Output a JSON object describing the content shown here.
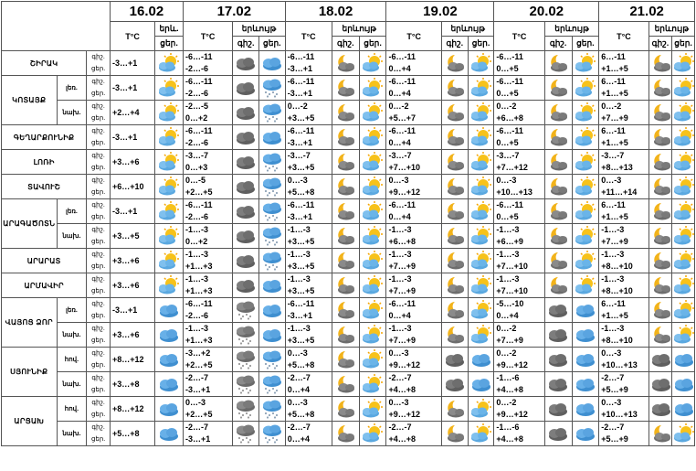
{
  "dates": [
    "16.02",
    "17.02",
    "18.02",
    "19.02",
    "20.02",
    "21.02"
  ],
  "header": {
    "temp_label": "T°C",
    "weather_label_short": "երև.",
    "weather_label": "երևույթ",
    "day_label": "ցեր.",
    "night_label": "գիշ."
  },
  "rows": [
    {
      "region": "ՇԻՐԱԿ",
      "sub": "",
      "rs": 1,
      "cells": [
        {
          "n": "",
          "d": "-3…+1",
          "ni": "",
          "di": "sun-cloud"
        },
        {
          "n": "-6…-11",
          "d": "-2…-6",
          "ni": "cloud",
          "di": "cloud-blue"
        },
        {
          "n": "-6…-11",
          "d": "-3…+1",
          "ni": "moon-cloud",
          "di": "sun-cloud"
        },
        {
          "n": "-6…-11",
          "d": "0…+4",
          "ni": "moon-cloud",
          "di": "sun-cloud"
        },
        {
          "n": "-6…-11",
          "d": "0…+5",
          "ni": "moon-cloud",
          "di": "sun-cloud"
        },
        {
          "n": "6…-11",
          "d": "+1…+5",
          "ni": "moon-cloud",
          "di": "sun-cloud"
        }
      ]
    },
    {
      "region": "ԿՈՏԱՅՔ",
      "sub": "լեռ.",
      "rs": 2,
      "cells": [
        {
          "n": "",
          "d": "-3…+1",
          "ni": "",
          "di": "sun-cloud"
        },
        {
          "n": "-6…-11",
          "d": "-2…-6",
          "ni": "cloud",
          "di": "cloud-snow"
        },
        {
          "n": "-6…-11",
          "d": "-3…+1",
          "ni": "moon-cloud",
          "di": "sun-cloud"
        },
        {
          "n": "-6…-11",
          "d": "0…+4",
          "ni": "moon-cloud",
          "di": "sun-cloud"
        },
        {
          "n": "-6…-11",
          "d": "0…+5",
          "ni": "moon-cloud",
          "di": "sun-cloud"
        },
        {
          "n": "6…-11",
          "d": "+1…+5",
          "ni": "moon-cloud",
          "di": "sun-cloud"
        }
      ]
    },
    {
      "region": "",
      "sub": "նախ.",
      "rs": 0,
      "cells": [
        {
          "n": "",
          "d": "+2…+4",
          "ni": "",
          "di": "sun-cloud"
        },
        {
          "n": "-2…-5",
          "d": "0…+2",
          "ni": "cloud",
          "di": "cloud-snow"
        },
        {
          "n": "0…-2",
          "d": "+3…+5",
          "ni": "moon-cloud",
          "di": "sun-cloud"
        },
        {
          "n": "0…-2",
          "d": "+5…+7",
          "ni": "moon-cloud",
          "di": "sun-cloud"
        },
        {
          "n": "0…-2",
          "d": "+6…+8",
          "ni": "moon-cloud",
          "di": "sun-cloud"
        },
        {
          "n": "0…-2",
          "d": "+7…+9",
          "ni": "moon-cloud",
          "di": "sun-cloud"
        }
      ]
    },
    {
      "region": "ԳԵՂԱՐՔՈՒՆԻՔ",
      "sub": "",
      "rs": 1,
      "cells": [
        {
          "n": "",
          "d": "-3…+1",
          "ni": "",
          "di": "sun-cloud"
        },
        {
          "n": "-6…-11",
          "d": "-2…-6",
          "ni": "cloud",
          "di": "cloud-blue"
        },
        {
          "n": "-6…-11",
          "d": "-3…+1",
          "ni": "moon-cloud",
          "di": "sun-cloud"
        },
        {
          "n": "-6…-11",
          "d": "0…+4",
          "ni": "moon-cloud",
          "di": "sun-cloud"
        },
        {
          "n": "-6…-11",
          "d": "0…+5",
          "ni": "moon-cloud",
          "di": "sun-cloud"
        },
        {
          "n": "6…-11",
          "d": "+1…+5",
          "ni": "moon-cloud",
          "di": "sun-cloud"
        }
      ]
    },
    {
      "region": "ԼՈՌԻ",
      "sub": "",
      "rs": 1,
      "cells": [
        {
          "n": "",
          "d": "+3…+6",
          "ni": "",
          "di": "sun-cloud"
        },
        {
          "n": "-3…-7",
          "d": "0…+3",
          "ni": "cloud",
          "di": "cloud-snow"
        },
        {
          "n": "-3…-7",
          "d": "+3…+5",
          "ni": "moon-cloud",
          "di": "sun-cloud"
        },
        {
          "n": "-3…-7",
          "d": "+7…+10",
          "ni": "moon-cloud",
          "di": "sun-cloud"
        },
        {
          "n": "-3…-7",
          "d": "+7…+12",
          "ni": "moon-cloud",
          "di": "sun-cloud"
        },
        {
          "n": "-3…-7",
          "d": "+8…+13",
          "ni": "moon-cloud",
          "di": "sun-cloud"
        }
      ]
    },
    {
      "region": "ՏԱՎՈՒՇ",
      "sub": "",
      "rs": 1,
      "cells": [
        {
          "n": "",
          "d": "+6…+10",
          "ni": "",
          "di": "sun-cloud"
        },
        {
          "n": "0…-5",
          "d": "+2…+5",
          "ni": "cloud",
          "di": "cloud-snow"
        },
        {
          "n": "0…-3",
          "d": "+5…+8",
          "ni": "moon-cloud",
          "di": "sun-cloud"
        },
        {
          "n": "0…-3",
          "d": "+9…+12",
          "ni": "moon-cloud",
          "di": "sun-cloud"
        },
        {
          "n": "0…-3",
          "d": "+10…+13",
          "ni": "moon-cloud",
          "di": "sun-cloud"
        },
        {
          "n": "0…-3",
          "d": "+11…+14",
          "ni": "moon-cloud",
          "di": "sun-cloud"
        }
      ]
    },
    {
      "region": "ԱՐԱԳԱԾՈՏՆ",
      "sub": "լեռ.",
      "rs": 2,
      "cells": [
        {
          "n": "",
          "d": "-3…+1",
          "ni": "",
          "di": "sun-cloud"
        },
        {
          "n": "-6…-11",
          "d": "-2…-6",
          "ni": "cloud",
          "di": "cloud-snow"
        },
        {
          "n": "-6…-11",
          "d": "-3…+1",
          "ni": "moon-cloud",
          "di": "sun-cloud"
        },
        {
          "n": "-6…-11",
          "d": "0…+4",
          "ni": "moon-cloud",
          "di": "sun-cloud"
        },
        {
          "n": "-6…-11",
          "d": "0…+5",
          "ni": "moon-cloud",
          "di": "sun-cloud"
        },
        {
          "n": "6…-11",
          "d": "+1…+5",
          "ni": "moon-cloud",
          "di": "sun-cloud"
        }
      ]
    },
    {
      "region": "",
      "sub": "նախ.",
      "rs": 0,
      "cells": [
        {
          "n": "",
          "d": "+3…+5",
          "ni": "",
          "di": "sun-cloud"
        },
        {
          "n": "-1…-3",
          "d": "0…+2",
          "ni": "cloud",
          "di": "cloud-snow"
        },
        {
          "n": "-1…-3",
          "d": "+3…+5",
          "ni": "moon-cloud",
          "di": "sun-cloud"
        },
        {
          "n": "-1…-3",
          "d": "+6…+8",
          "ni": "moon-cloud",
          "di": "sun-cloud"
        },
        {
          "n": "-1…-3",
          "d": "+6…+9",
          "ni": "moon-cloud",
          "di": "sun-cloud"
        },
        {
          "n": "-1…-3",
          "d": "+7…+9",
          "ni": "moon-cloud",
          "di": "sun-cloud"
        }
      ]
    },
    {
      "region": "ԱՐԱՐԱՏ",
      "sub": "",
      "rs": 1,
      "cells": [
        {
          "n": "",
          "d": "+3…+6",
          "ni": "",
          "di": "sun-cloud"
        },
        {
          "n": "-1…-3",
          "d": "+1…+3",
          "ni": "cloud",
          "di": "cloud-snow"
        },
        {
          "n": "-1…-3",
          "d": "+3…+5",
          "ni": "moon-cloud",
          "di": "sun-cloud"
        },
        {
          "n": "-1…-3",
          "d": "+7…+9",
          "ni": "moon-cloud",
          "di": "sun-cloud"
        },
        {
          "n": "-1…-3",
          "d": "+7…+10",
          "ni": "moon-cloud",
          "di": "sun-cloud"
        },
        {
          "n": "-1…-3",
          "d": "+8…+10",
          "ni": "moon-cloud",
          "di": "sun-cloud"
        }
      ]
    },
    {
      "region": "ԱՐՄԱՎԻՐ",
      "sub": "",
      "rs": 1,
      "cells": [
        {
          "n": "",
          "d": "+3…+6",
          "ni": "",
          "di": "sun-cloud"
        },
        {
          "n": "-1…-3",
          "d": "+1…+3",
          "ni": "cloud",
          "di": "cloud-blue"
        },
        {
          "n": "-1…-3",
          "d": "+3…+5",
          "ni": "moon-cloud",
          "di": "sun-cloud"
        },
        {
          "n": "-1…-3",
          "d": "+7…+9",
          "ni": "moon-cloud",
          "di": "sun-cloud"
        },
        {
          "n": "-1…-3",
          "d": "+7…+10",
          "ni": "moon-cloud",
          "di": "sun-cloud"
        },
        {
          "n": "-1…-3",
          "d": "+8…+10",
          "ni": "moon-cloud",
          "di": "sun-cloud"
        }
      ]
    },
    {
      "region": "ՎԱՅՈՑ ՁՈՐ",
      "sub": "լեռ.",
      "rs": 2,
      "cells": [
        {
          "n": "",
          "d": "-3…+1",
          "ni": "",
          "di": "cloud-blue"
        },
        {
          "n": "-6…-11",
          "d": "-2…-6",
          "ni": "cloud-snow-gray",
          "di": "cloud-blue"
        },
        {
          "n": "-6…-11",
          "d": "-3…+1",
          "ni": "moon-cloud",
          "di": "sun-cloud"
        },
        {
          "n": "-6…-11",
          "d": "0…+4",
          "ni": "moon-cloud",
          "di": "sun-cloud"
        },
        {
          "n": "-5…-10",
          "d": "0…+4",
          "ni": "cloud",
          "di": "cloud-blue"
        },
        {
          "n": "6…-11",
          "d": "+1…+5",
          "ni": "moon-cloud",
          "di": "sun-cloud"
        }
      ]
    },
    {
      "region": "",
      "sub": "նախ.",
      "rs": 0,
      "cells": [
        {
          "n": "",
          "d": "+3…+6",
          "ni": "",
          "di": "cloud-blue"
        },
        {
          "n": "-1…-3",
          "d": "+1…+3",
          "ni": "cloud-snow-gray",
          "di": "cloud-blue"
        },
        {
          "n": "-1…-3",
          "d": "+3…+5",
          "ni": "moon-cloud",
          "di": "sun-cloud"
        },
        {
          "n": "-1…-3",
          "d": "+7…+9",
          "ni": "moon-cloud",
          "di": "sun-cloud"
        },
        {
          "n": "0…-2",
          "d": "+7…+9",
          "ni": "cloud",
          "di": "cloud-blue"
        },
        {
          "n": "-1…-3",
          "d": "+8…+10",
          "ni": "moon-cloud",
          "di": "sun-cloud"
        }
      ]
    },
    {
      "region": "ՍՅՈՒՆԻՔ",
      "sub": "հով.",
      "rs": 2,
      "cells": [
        {
          "n": "",
          "d": "+8…+12",
          "ni": "",
          "di": "cloud-blue"
        },
        {
          "n": "-3…+2",
          "d": "+2…+5",
          "ni": "cloud-snow-gray",
          "di": "cloud-snow"
        },
        {
          "n": "0…-3",
          "d": "+5…+8",
          "ni": "moon-cloud",
          "di": "sun-cloud"
        },
        {
          "n": "0…-3",
          "d": "+9…+12",
          "ni": "cloud",
          "di": "cloud-blue"
        },
        {
          "n": "0…-2",
          "d": "+9…+12",
          "ni": "cloud",
          "di": "cloud-blue"
        },
        {
          "n": "0…-3",
          "d": "+10…+13",
          "ni": "cloud",
          "di": "cloud-blue"
        }
      ]
    },
    {
      "region": "",
      "sub": "նախ.",
      "rs": 0,
      "cells": [
        {
          "n": "",
          "d": "+3…+8",
          "ni": "",
          "di": "cloud-blue"
        },
        {
          "n": "-2…-7",
          "d": "-3…+1",
          "ni": "cloud-snow-gray",
          "di": "cloud-snow"
        },
        {
          "n": "-2…-7",
          "d": "0…+4",
          "ni": "moon-cloud",
          "di": "sun-cloud"
        },
        {
          "n": "-2…-7",
          "d": "+4…+8",
          "ni": "cloud",
          "di": "cloud-blue"
        },
        {
          "n": "-1…-6",
          "d": "+4…+8",
          "ni": "cloud",
          "di": "cloud-blue"
        },
        {
          "n": "-2…-7",
          "d": "+5…+9",
          "ni": "cloud",
          "di": "cloud-blue"
        }
      ]
    },
    {
      "region": "ԱՐՑԱԽ",
      "sub": "հով.",
      "rs": 2,
      "cells": [
        {
          "n": "",
          "d": "+8…+12",
          "ni": "",
          "di": "cloud-blue"
        },
        {
          "n": "0…-3",
          "d": "+2…+5",
          "ni": "cloud-snow-gray",
          "di": "cloud-snow"
        },
        {
          "n": "0…-3",
          "d": "+5…+8",
          "ni": "moon-cloud",
          "di": "sun-cloud"
        },
        {
          "n": "0…-3",
          "d": "+9…+12",
          "ni": "moon-cloud",
          "di": "sun-cloud"
        },
        {
          "n": "0…-2",
          "d": "+9…+12",
          "ni": "cloud",
          "di": "cloud-blue"
        },
        {
          "n": "0…-3",
          "d": "+10…+13",
          "ni": "cloud",
          "di": "cloud-blue"
        }
      ]
    },
    {
      "region": "",
      "sub": "նախ.",
      "rs": 0,
      "cells": [
        {
          "n": "",
          "d": "+5…+8",
          "ni": "",
          "di": "cloud-blue"
        },
        {
          "n": "-2…-7",
          "d": "-3…+1",
          "ni": "cloud-snow-gray",
          "di": "cloud-snow"
        },
        {
          "n": "-2…-7",
          "d": "0…+4",
          "ni": "moon-cloud",
          "di": "sun-cloud"
        },
        {
          "n": "-2…-7",
          "d": "+4…+8",
          "ni": "moon-cloud",
          "di": "sun-cloud"
        },
        {
          "n": "-1…-6",
          "d": "+4…+8",
          "ni": "cloud",
          "di": "cloud-blue"
        },
        {
          "n": "-2…-7",
          "d": "+5…+9",
          "ni": "moon-cloud",
          "di": "sun-cloud"
        }
      ]
    }
  ]
}
